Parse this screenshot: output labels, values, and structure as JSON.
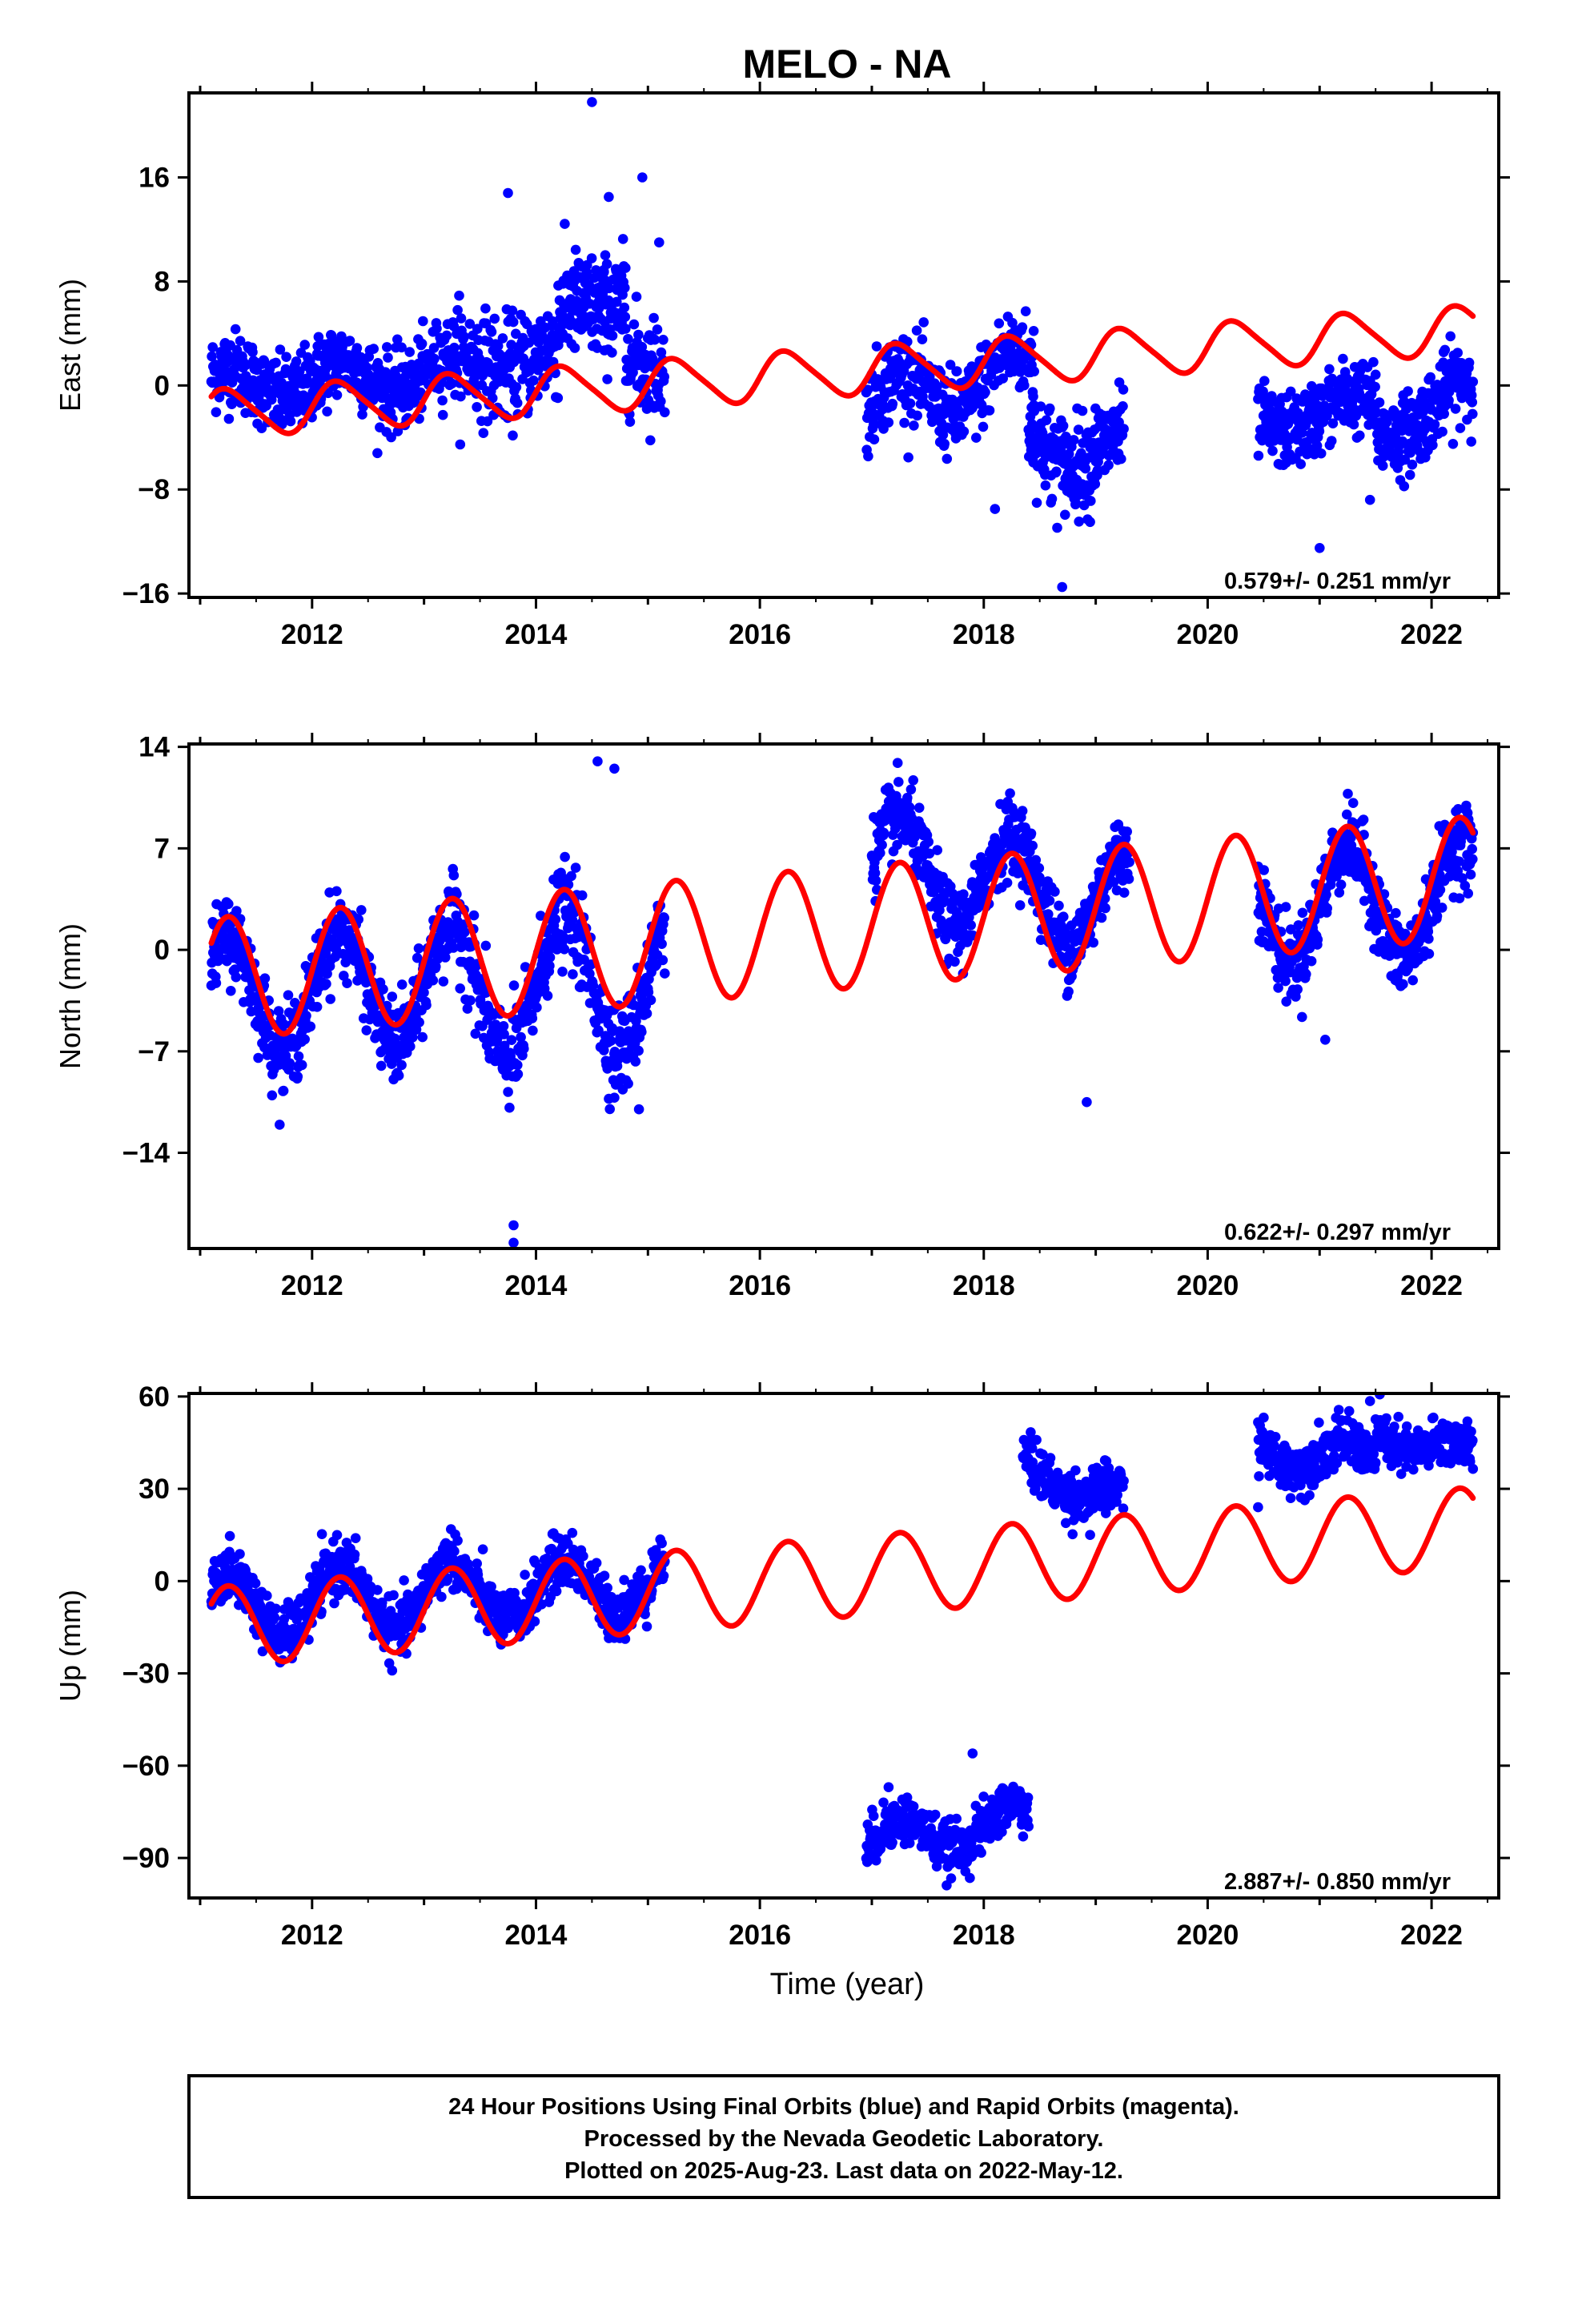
{
  "figure": {
    "title": "MELO - NA",
    "xlabel": "Time (year)",
    "caption": [
      "24 Hour Positions Using Final Orbits (blue) and Rapid Orbits (magenta).",
      "Processed by the Nevada Geodetic Laboratory.",
      "Plotted on 2025-Aug-23. Last data on 2022-May-12."
    ],
    "colors": {
      "data_points": "#0000ff",
      "model_fit": "#ff0000",
      "frame": "#000000"
    }
  },
  "chart_data": [
    {
      "type": "scatter",
      "panel": "east",
      "ylabel": "East (mm)",
      "rate_label": "0.579+/- 0.251 mm/yr",
      "xlim": [
        2010.9,
        2022.6
      ],
      "ylim": [
        -16.3,
        22.5
      ],
      "xticks": [
        2012,
        2014,
        2016,
        2018,
        2020,
        2022
      ],
      "xtick_labels": [
        "2012",
        "2014",
        "2016",
        "2018",
        "2020",
        "2022"
      ],
      "yticks": [
        -16,
        -8,
        0,
        8,
        16
      ],
      "ytick_labels": [
        "−16",
        "−8",
        "0",
        "8",
        "16"
      ],
      "model": {
        "offset": -2.2,
        "rate": 0.579,
        "annual_amp": 1.8,
        "annual_phase": 0.0,
        "semiannual_amp": 0.3,
        "start": 2011.1,
        "end": 2022.37
      },
      "data_segments": [
        {
          "t0": 2011.1,
          "t1": 2013.3,
          "y0": 0.0,
          "y1": 1.0,
          "amp": 1.3,
          "noise": 1.5,
          "points": 520
        },
        {
          "t0": 2013.3,
          "t1": 2014.2,
          "y0": 1.5,
          "y1": 2.5,
          "amp": 0.8,
          "noise": 2.0,
          "points": 200
        },
        {
          "t0": 2014.2,
          "t1": 2014.8,
          "y0": 4.0,
          "y1": 8.0,
          "amp": 1.5,
          "noise": 2.0,
          "points": 160
        },
        {
          "t0": 2014.8,
          "t1": 2015.15,
          "y0": 3.0,
          "y1": 0.5,
          "amp": 0.5,
          "noise": 2.0,
          "points": 80
        },
        {
          "t0": 2016.95,
          "t1": 2018.45,
          "y0": -1.5,
          "y1": 1.0,
          "amp": 2.0,
          "noise": 1.6,
          "points": 340
        },
        {
          "t0": 2018.4,
          "t1": 2019.25,
          "y0": -4.0,
          "y1": -5.5,
          "amp": 1.5,
          "noise": 1.8,
          "points": 220
        },
        {
          "t0": 2020.45,
          "t1": 2021.5,
          "y0": -3.0,
          "y1": -1.5,
          "amp": 1.0,
          "noise": 1.4,
          "points": 260
        },
        {
          "t0": 2021.5,
          "t1": 2022.37,
          "y0": -3.5,
          "y1": -0.5,
          "amp": 1.2,
          "noise": 1.5,
          "points": 230
        }
      ],
      "outliers": [
        [
          2014.5,
          21.8
        ],
        [
          2014.95,
          16.0
        ],
        [
          2013.75,
          14.8
        ],
        [
          2014.65,
          14.5
        ],
        [
          2015.1,
          11.0
        ],
        [
          2018.7,
          -15.5
        ],
        [
          2021.0,
          -12.5
        ],
        [
          2018.1,
          -9.5
        ],
        [
          2018.6,
          -9.0
        ],
        [
          2018.95,
          -10.5
        ],
        [
          2021.45,
          -8.8
        ]
      ]
    },
    {
      "type": "scatter",
      "panel": "north",
      "ylabel": "North (mm)",
      "rate_label": "0.622+/- 0.297 mm/yr",
      "xlim": [
        2010.9,
        2022.6
      ],
      "ylim": [
        -20.6,
        14.2
      ],
      "xticks": [
        2012,
        2014,
        2016,
        2018,
        2020,
        2022
      ],
      "xtick_labels": [
        "2012",
        "2014",
        "2016",
        "2018",
        "2020",
        "2022"
      ],
      "yticks": [
        -14,
        -7,
        0,
        7,
        14
      ],
      "ytick_labels": [
        "−14",
        "−7",
        "0",
        "7",
        "14"
      ],
      "model": {
        "offset": -2.0,
        "rate": 0.622,
        "annual_amp": 4.2,
        "annual_phase": 0.0,
        "semiannual_amp": 0.0,
        "start": 2011.1,
        "end": 2022.37
      },
      "data_segments": [
        {
          "t0": 2011.1,
          "t1": 2013.3,
          "y0": -3.2,
          "y1": -2.2,
          "amp": 4.0,
          "noise": 1.4,
          "points": 520
        },
        {
          "t0": 2013.3,
          "t1": 2015.15,
          "y0": -3.0,
          "y1": -1.8,
          "amp": 4.8,
          "noise": 1.6,
          "points": 420
        },
        {
          "t0": 2017.0,
          "t1": 2019.3,
          "y0": 6.0,
          "y1": 3.0,
          "amp": 3.5,
          "noise": 1.3,
          "points": 560
        },
        {
          "t0": 2020.45,
          "t1": 2022.37,
          "y0": 3.0,
          "y1": 3.5,
          "amp": 4.0,
          "noise": 1.3,
          "points": 480
        }
      ],
      "outliers": [
        [
          2013.8,
          -19.0
        ],
        [
          2013.8,
          -20.2
        ],
        [
          2014.7,
          -10.2
        ],
        [
          2014.92,
          -11.0
        ],
        [
          2018.92,
          -10.5
        ],
        [
          2014.55,
          13.0
        ],
        [
          2014.7,
          12.5
        ],
        [
          2021.05,
          -6.2
        ]
      ]
    },
    {
      "type": "scatter",
      "panel": "up",
      "ylabel": "Up (mm)",
      "rate_label": "2.887+/- 0.850 mm/yr",
      "xlim": [
        2010.9,
        2022.6
      ],
      "ylim": [
        -103,
        61
      ],
      "xticks": [
        2012,
        2014,
        2016,
        2018,
        2020,
        2022
      ],
      "xtick_labels": [
        "2012",
        "2014",
        "2016",
        "2018",
        "2020",
        "2022"
      ],
      "yticks": [
        -90,
        -60,
        -30,
        0,
        30,
        60
      ],
      "ytick_labels": [
        "−90",
        "−60",
        "−30",
        "0",
        "30",
        "60"
      ],
      "model": {
        "offset": -15.0,
        "rate": 2.887,
        "annual_amp": 13.0,
        "annual_phase": 0.0,
        "semiannual_amp": 0.0,
        "start": 2011.1,
        "end": 2022.37
      },
      "data_segments": [
        {
          "t0": 2011.1,
          "t1": 2013.3,
          "y0": -9.0,
          "y1": -3.5,
          "amp": 11.0,
          "noise": 4.5,
          "points": 520
        },
        {
          "t0": 2013.3,
          "t1": 2015.15,
          "y0": -5.0,
          "y1": 0.0,
          "amp": 9.0,
          "noise": 4.5,
          "points": 420
        },
        {
          "t0": 2016.95,
          "t1": 2018.4,
          "y0": -85.0,
          "y1": -78.0,
          "amp": 6.0,
          "noise": 4.0,
          "points": 330
        },
        {
          "t0": 2018.35,
          "t1": 2019.25,
          "y0": 37.0,
          "y1": 26.0,
          "amp": 4.0,
          "noise": 4.0,
          "points": 210
        },
        {
          "t0": 2020.45,
          "t1": 2021.5,
          "y0": 44.0,
          "y1": 38.0,
          "amp": 6.0,
          "noise": 4.0,
          "points": 250
        },
        {
          "t0": 2021.5,
          "t1": 2022.37,
          "y0": 49.0,
          "y1": 40.0,
          "amp": 4.0,
          "noise": 4.0,
          "points": 210
        }
      ],
      "outliers": [
        [
          2017.9,
          -56.0
        ],
        [
          2017.15,
          -67.0
        ],
        [
          2018.95,
          15.0
        ],
        [
          2021.45,
          58.5
        ],
        [
          2020.45,
          24.0
        ]
      ]
    }
  ]
}
